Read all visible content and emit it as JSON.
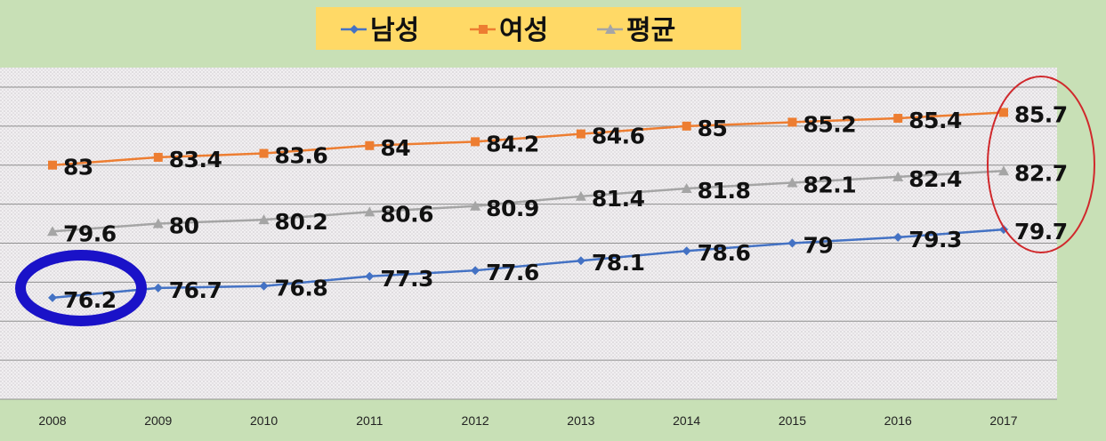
{
  "chart_data": {
    "type": "line",
    "categories": [
      "2008",
      "2009",
      "2010",
      "2011",
      "2012",
      "2013",
      "2014",
      "2015",
      "2016",
      "2017"
    ],
    "series": [
      {
        "name": "남성",
        "color": "#4472c4",
        "marker": "diamond",
        "values": [
          76.2,
          76.7,
          76.8,
          77.3,
          77.6,
          78.1,
          78.6,
          79,
          79.3,
          79.7
        ]
      },
      {
        "name": "여성",
        "color": "#ed7d31",
        "marker": "square",
        "values": [
          83,
          83.4,
          83.6,
          84,
          84.2,
          84.6,
          85,
          85.2,
          85.4,
          85.7
        ]
      },
      {
        "name": "평균",
        "color": "#a5a5a5",
        "marker": "triangle",
        "values": [
          79.6,
          80,
          80.2,
          80.6,
          80.9,
          81.4,
          81.8,
          82.1,
          82.4,
          82.7
        ]
      }
    ],
    "ylim": [
      71,
      88
    ],
    "grid": true,
    "legend_position": "top-center",
    "legend_background": "#ffd966",
    "highlight_colors": {
      "first_male_value": "#1a12c8",
      "last_values": "#d0282c"
    }
  }
}
